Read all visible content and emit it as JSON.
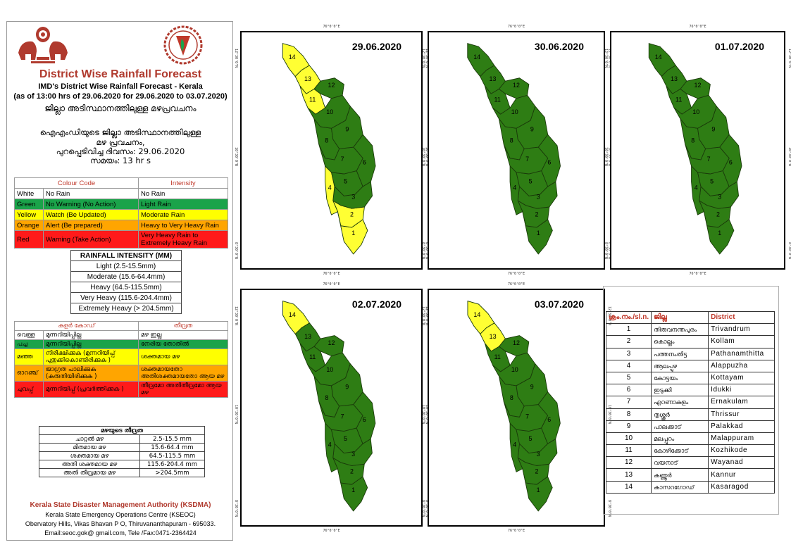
{
  "header": {
    "title": "District Wise Rainfall Forecast",
    "subtitle_line1": "IMD's District Wise Rainfall Forecast - Kerala",
    "subtitle_line2": "(as of 13:00 hrs of 29.06.2020  for 29.06.2020  to 03.07.2020)",
    "title_ml": "ജില്ലാ അടിസ്ഥാനത്തിലുള്ള മഴപ്രവചനം",
    "issued_ml_line1": "ഐഎംഡിയുടെ ജില്ലാ   അടിസ്ഥാനത്തിലുള്ള",
    "issued_ml_line2": "മഴ പ്രവചനം,",
    "issued_ml_line3": "പുറപ്പെടിവിച്ച     ദിവസം: 29.06.2020",
    "issued_ml_line4": "സമയം: 13 hr s"
  },
  "legend": {
    "col_color": "Colour Code",
    "col_intensity": "Intensity",
    "rows": [
      {
        "color_name": "White",
        "code": "No Rain",
        "intensity": "No Rain",
        "hex": "#ffffff"
      },
      {
        "color_name": "Green",
        "code": "No Warning (No Action)",
        "intensity": "Light Rain",
        "hex": "#1aa34a"
      },
      {
        "color_name": "Yellow",
        "code": "Watch (Be Updated)",
        "intensity": "Moderate Rain",
        "hex": "#ffff00"
      },
      {
        "color_name": "Orange",
        "code": "Alert (Be prepared)",
        "intensity": "Heavy to Very Heavy Rain",
        "hex": "#ffa500"
      },
      {
        "color_name": "Red",
        "code": "Warning (Take Action)",
        "intensity": "Very Heavy Rain to Extremely Heavy Rain",
        "hex": "#ff1a1a"
      }
    ]
  },
  "rainfall_intensity": {
    "header": "RAINFALL INTENSITY (MM)",
    "rows": [
      "Light (2.5-15.5mm)",
      "Moderate (15.6-64.4mm)",
      "Heavy (64.5-115.5mm)",
      "Very Heavy (115.6-204.4mm)",
      "Extremely Heavy (> 204.5mm)"
    ]
  },
  "legend_ml": {
    "col_color": "കളർ കോഡ്",
    "col_intensity": "തീവ്രത",
    "rows": [
      {
        "color_name": "വെള്ള",
        "code": "മുന്നറിയിപ്പില്ല",
        "intensity": "മഴ ഇല്ല",
        "hex": "#ffffff"
      },
      {
        "color_name": "പച്ച",
        "code": "മുന്നറിയിപ്പില്ല",
        "intensity": "നേരിയ തോതിൽ",
        "hex": "#1aa34a"
      },
      {
        "color_name": "മഞ്ഞ",
        "code": "നിരീക്ഷിക്കുക (മുന്നറിയിപ്പ് പുതുക്കികൊണ്ടിരിക്കുക )",
        "intensity": "ശക്തമായ മഴ",
        "hex": "#ffff00"
      },
      {
        "color_name": "ഓറഞ്ച്",
        "code": "ജാഗ്രത പാലിക്കുക (കരുതിയിരിക്കുക )",
        "intensity": "ശക്തമായതോ അതിശക്തമായതോ ആയ മഴ",
        "hex": "#ffa500"
      },
      {
        "color_name": "ചുവപ്പ്",
        "code": "മുന്നറിയിപ്പ് (പ്രവർത്തിക്കുക )",
        "intensity": "തീവ്രമോ അതിതീവ്രമോ ആയ മഴ",
        "hex": "#ff1a1a"
      }
    ]
  },
  "intensity_ml": {
    "header": "മഴയുടെ  തീവ്രത",
    "rows": [
      {
        "label": "ചാറ്റൽ  മഴ",
        "range": "2.5-15.5 mm"
      },
      {
        "label": "മിതമായ  മഴ",
        "range": "15.6-64.4 mm"
      },
      {
        "label": "ശക്തമായ  മഴ",
        "range": "64.5-115.5 mm"
      },
      {
        "label": "അതി ശക്തമായ  മഴ",
        "range": "115.6-204.4 mm"
      },
      {
        "label": "അതി തീവ്രമായ  മഴ",
        "range": ">204.5mm"
      }
    ]
  },
  "footer": {
    "org": "Kerala State Disaster Management Authority (KSDMA)",
    "line1": "Kerala State Emergency Operations Centre (KSEOC)",
    "line2": "Obervatory Hills, Vikas Bhavan P O, Thiruvananthapuram - 695033.",
    "line3": "Email:seoc.gok@ gmail.com, Tele /Fax:0471-2364424"
  },
  "colors": {
    "green": "#2e7d14",
    "yellow": "#ffff33",
    "white": "#ffffff",
    "border": "#1a3a0a"
  },
  "ticks": {
    "top": "76°0'0\"E",
    "bottom": "76°0'0\"E",
    "lat1": "12°30'0\"N",
    "lat2": "10°30'0\"N",
    "lat3": "8°30'0\"N"
  },
  "maps": [
    {
      "date": "29.06.2020",
      "districts": {
        "1": "yellow",
        "2": "yellow",
        "3": "green",
        "4": "yellow",
        "5": "green",
        "6": "green",
        "7": "green",
        "8": "green",
        "9": "green",
        "10": "green",
        "11": "yellow",
        "12": "green",
        "13": "yellow",
        "14": "yellow"
      }
    },
    {
      "date": "30.06.2020",
      "districts": {
        "1": "green",
        "2": "green",
        "3": "green",
        "4": "green",
        "5": "green",
        "6": "green",
        "7": "green",
        "8": "green",
        "9": "green",
        "10": "green",
        "11": "green",
        "12": "green",
        "13": "green",
        "14": "green"
      }
    },
    {
      "date": "01.07.2020",
      "districts": {
        "1": "green",
        "2": "green",
        "3": "green",
        "4": "green",
        "5": "green",
        "6": "green",
        "7": "green",
        "8": "green",
        "9": "green",
        "10": "green",
        "11": "green",
        "12": "green",
        "13": "green",
        "14": "green"
      }
    },
    {
      "date": "02.07.2020",
      "districts": {
        "1": "green",
        "2": "green",
        "3": "green",
        "4": "green",
        "5": "green",
        "6": "green",
        "7": "green",
        "8": "green",
        "9": "green",
        "10": "green",
        "11": "green",
        "12": "green",
        "13": "green",
        "14": "yellow"
      }
    },
    {
      "date": "03.07.2020",
      "districts": {
        "1": "green",
        "2": "green",
        "3": "green",
        "4": "green",
        "5": "green",
        "6": "green",
        "7": "green",
        "8": "green",
        "9": "green",
        "10": "green",
        "11": "green",
        "12": "green",
        "13": "yellow",
        "14": "yellow"
      }
    }
  ],
  "district_table": {
    "headers": [
      "ക്രം.നം./sl.n.",
      "ജില്ല",
      "District"
    ],
    "rows": [
      [
        "1",
        "തിരുവനന്തപുരം",
        "Trivandrum"
      ],
      [
        "2",
        "കൊല്ലം",
        "Kollam"
      ],
      [
        "3",
        "പത്തനംതിട്ട",
        "Pathanamthitta"
      ],
      [
        "4",
        "ആലപ്പുഴ",
        "Alappuzha"
      ],
      [
        "5",
        "കോട്ടയം",
        "Kottayam"
      ],
      [
        "6",
        "ഇടുക്കി",
        "Idukki"
      ],
      [
        "7",
        "എറണാകുളം",
        "Ernakulam"
      ],
      [
        "8",
        "തൃശ്ശൂർ",
        "Thrissur"
      ],
      [
        "9",
        "പാലക്കാട്",
        "Palakkad"
      ],
      [
        "10",
        "മലപ്പുറം",
        "Malappuram"
      ],
      [
        "11",
        "കോഴിക്കോട്",
        "Kozhikode"
      ],
      [
        "12",
        "വയനാട്",
        "Wayanad"
      ],
      [
        "13",
        "കണ്ണൂർ",
        "Kannur"
      ],
      [
        "14",
        "കാസറഗോഡ്",
        "Kasaragod"
      ]
    ]
  }
}
